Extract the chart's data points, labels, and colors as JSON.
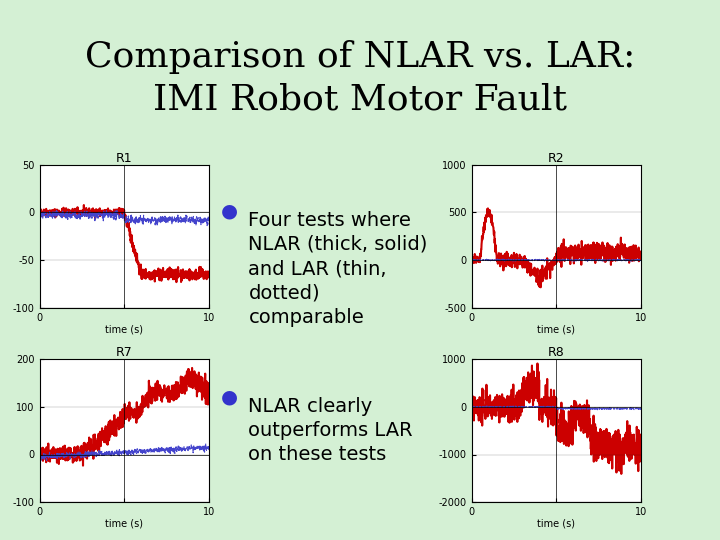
{
  "title_line1": "Comparison of NLAR vs. LAR:",
  "title_line2": "IMI Robot Motor Fault",
  "bg_color": "#d4f0d4",
  "plot_bg_color": "#ffffff",
  "bullet_color": "#3333cc",
  "text_color": "#000000",
  "sep_teal": "#008080",
  "sep_mauve": "#b08090",
  "plots": [
    {
      "title": "R1",
      "ylim": [
        -100,
        50
      ],
      "yticks": [
        -100,
        -50,
        0,
        50
      ]
    },
    {
      "title": "R2",
      "ylim": [
        -500,
        1000
      ],
      "yticks": [
        -500,
        0,
        500,
        1000
      ]
    },
    {
      "title": "R7",
      "ylim": [
        -100,
        200
      ],
      "yticks": [
        -100,
        0,
        100,
        200
      ]
    },
    {
      "title": "R8",
      "ylim": [
        -2000,
        1000
      ],
      "yticks": [
        -2000,
        -1000,
        0,
        1000
      ]
    }
  ],
  "xlim": [
    0,
    10
  ],
  "xlabel": "time (s)",
  "nlar_color": "#cc0000",
  "lar_color": "#4444cc",
  "nlar_lw": 1.5,
  "lar_lw": 0.8,
  "title_fontsize": 26,
  "plot_title_fontsize": 9,
  "tick_fontsize": 7,
  "xlabel_fontsize": 7,
  "bullet_fontsize": 14
}
